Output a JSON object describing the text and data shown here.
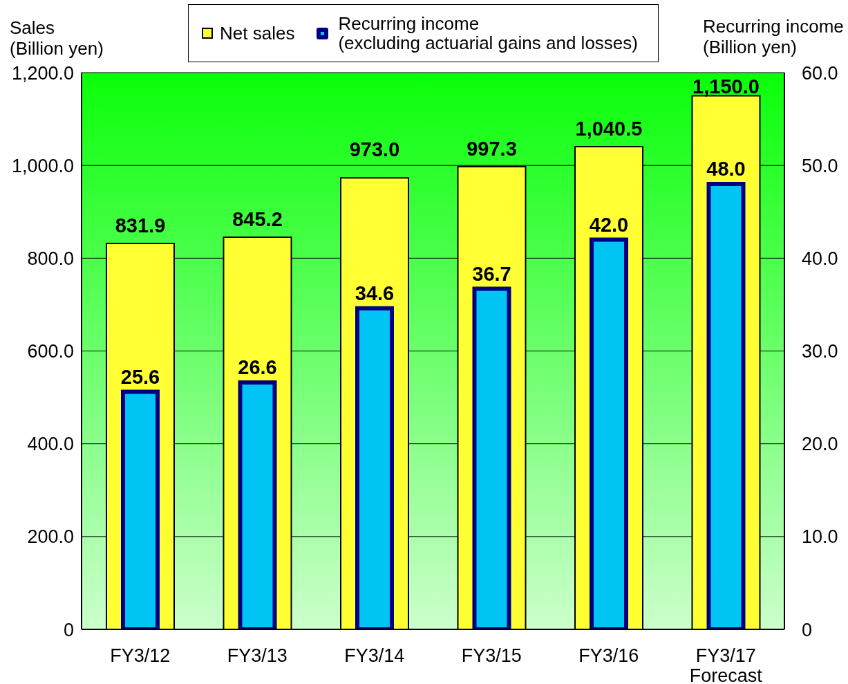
{
  "chart_data": {
    "type": "bar",
    "categories": [
      "FY3/12",
      "FY3/13",
      "FY3/14",
      "FY3/15",
      "FY3/16",
      "FY3/17\nForecast"
    ],
    "series": [
      {
        "name": "Net sales",
        "color": "#ffff33",
        "values": [
          831.9,
          845.2,
          973.0,
          997.3,
          1040.5,
          1150.0
        ],
        "value_labels": [
          "831.9",
          "845.2",
          "973.0",
          "997.3",
          "1,040.5",
          "1,150.0"
        ]
      },
      {
        "name": "Recurring income\n(excluding actuarial gains and losses)",
        "color": "#00c4f4",
        "axis": "y2",
        "values": [
          25.6,
          26.6,
          34.6,
          36.7,
          42.0,
          48.0
        ],
        "value_labels": [
          "25.6",
          "26.6",
          "34.6",
          "36.7",
          "42.0",
          "48.0"
        ]
      }
    ],
    "ylabel": "Sales\n(Billion yen)",
    "y2label": "Recurring income\n(Billion yen)",
    "ylim": [
      0,
      1200
    ],
    "yticks": [
      0,
      {
        "value": 200,
        "label": "200.0"
      },
      {
        "value": 400,
        "label": "400.0"
      },
      {
        "value": 600,
        "label": "600.0"
      },
      {
        "value": 800,
        "label": "800.0"
      },
      {
        "value": 1000,
        "label": "1,000.0"
      },
      {
        "value": 1200,
        "label": "1,200.0"
      }
    ],
    "y2lim": [
      0,
      60
    ],
    "y2ticks": [
      0,
      {
        "value": 10,
        "label": "10.0"
      },
      {
        "value": 20,
        "label": "20.0"
      },
      {
        "value": 30,
        "label": "30.0"
      },
      {
        "value": 40,
        "label": "40.0"
      },
      {
        "value": 50,
        "label": "50.0"
      },
      {
        "value": 60,
        "label": "60.0"
      }
    ],
    "grid": "y",
    "legend": "top"
  }
}
